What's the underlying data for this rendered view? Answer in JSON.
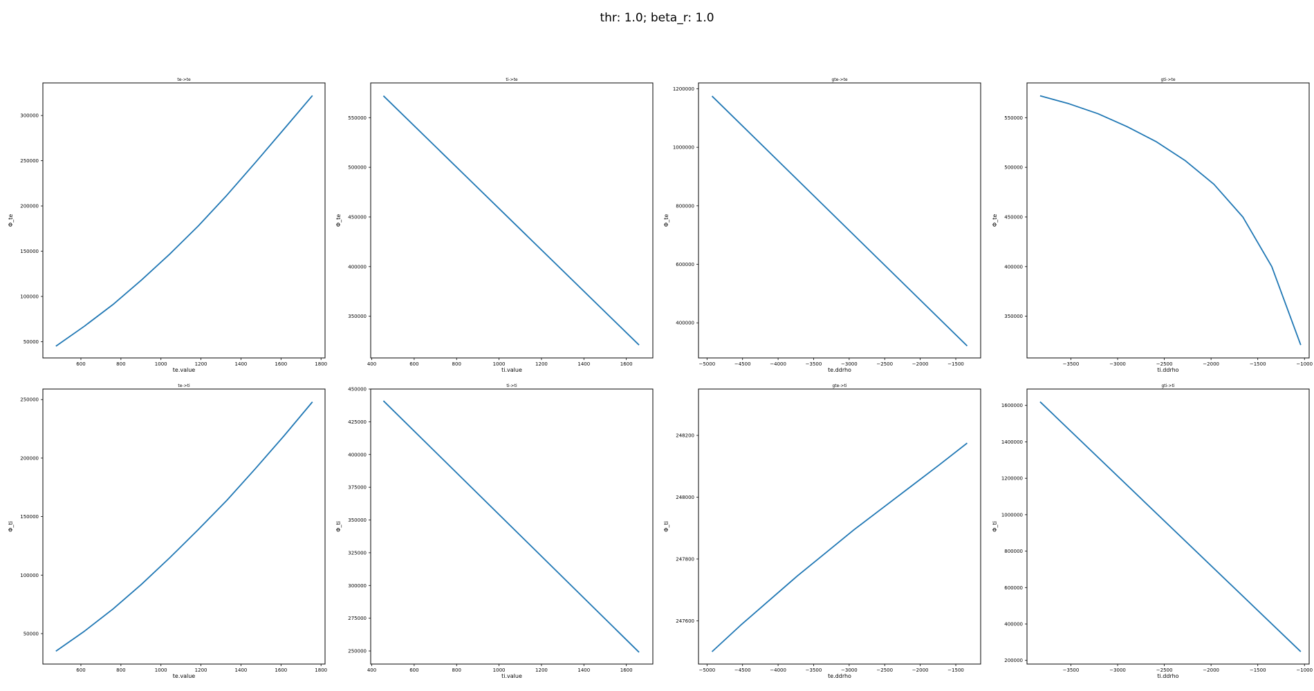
{
  "figure": {
    "suptitle": "thr: 1.0; beta_r: 1.0",
    "line_color": "#1f77b4"
  },
  "chart_data": [
    {
      "type": "line",
      "title": "te->te",
      "xlabel": "te.value",
      "ylabel": "Φ_te",
      "xlim": [
        410,
        1820
      ],
      "ylim": [
        32000,
        336000
      ],
      "xticks": [
        600,
        800,
        1000,
        1200,
        1400,
        1600,
        1800
      ],
      "yticks": [
        50000,
        100000,
        150000,
        200000,
        250000,
        300000
      ],
      "x": [
        475,
        617,
        760,
        902,
        1045,
        1187,
        1330,
        1472,
        1615,
        1757
      ],
      "y": [
        45000,
        67000,
        91000,
        118000,
        147000,
        178000,
        212000,
        248000,
        285000,
        322000
      ]
    },
    {
      "type": "line",
      "title": "ti->te",
      "xlabel": "ti.value",
      "ylabel": "Φ_te",
      "xlim": [
        395,
        1725
      ],
      "ylim": [
        308000,
        585000
      ],
      "xticks": [
        400,
        600,
        800,
        1000,
        1200,
        1400,
        1600
      ],
      "yticks": [
        350000,
        400000,
        450000,
        500000,
        550000
      ],
      "x": [
        455,
        1660
      ],
      "y": [
        572000,
        321000
      ]
    },
    {
      "type": "line",
      "title": "gte->te",
      "xlabel": "te.ddrho",
      "ylabel": "Φ_te",
      "xlim": [
        -5120,
        -1150
      ],
      "ylim": [
        280000,
        1220000
      ],
      "xticks": [
        -5000,
        -4500,
        -4000,
        -3500,
        -3000,
        -2500,
        -2000,
        -1500
      ],
      "yticks": [
        400000,
        600000,
        800000,
        1000000,
        1200000
      ],
      "x": [
        -4930,
        -1340
      ],
      "y": [
        1175000,
        321000
      ]
    },
    {
      "type": "line",
      "title": "gti->te",
      "xlabel": "ti.ddrho",
      "ylabel": "Φ_te",
      "xlim": [
        -3970,
        -950
      ],
      "ylim": [
        308000,
        585000
      ],
      "xticks": [
        -3500,
        -3000,
        -2500,
        -2000,
        -1500,
        -1000
      ],
      "yticks": [
        350000,
        400000,
        450000,
        500000,
        550000
      ],
      "x": [
        -3830,
        -3520,
        -3210,
        -2900,
        -2590,
        -2280,
        -1970,
        -1660,
        -1350,
        -1040
      ],
      "y": [
        572000,
        564000,
        554000,
        541000,
        526000,
        507000,
        483000,
        450000,
        400000,
        321000
      ]
    },
    {
      "type": "line",
      "title": "te->ti",
      "xlabel": "te.value",
      "ylabel": "Φ_ti",
      "xlim": [
        410,
        1820
      ],
      "ylim": [
        24000,
        259000
      ],
      "xticks": [
        600,
        800,
        1000,
        1200,
        1400,
        1600,
        1800
      ],
      "yticks": [
        50000,
        100000,
        150000,
        200000,
        250000
      ],
      "x": [
        475,
        617,
        760,
        902,
        1045,
        1187,
        1330,
        1472,
        1615,
        1757
      ],
      "y": [
        35000,
        52000,
        71000,
        92000,
        115000,
        139000,
        164000,
        191000,
        219000,
        248000
      ]
    },
    {
      "type": "line",
      "title": "ti->ti",
      "xlabel": "ti.value",
      "ylabel": "Φ_ti",
      "xlim": [
        395,
        1725
      ],
      "ylim": [
        240000,
        450000
      ],
      "xticks": [
        400,
        600,
        800,
        1000,
        1200,
        1400,
        1600
      ],
      "yticks": [
        250000,
        275000,
        300000,
        325000,
        350000,
        375000,
        400000,
        425000,
        450000
      ],
      "x": [
        455,
        1660
      ],
      "y": [
        441000,
        249000
      ]
    },
    {
      "type": "line",
      "title": "gte->ti",
      "xlabel": "te.ddrho",
      "ylabel": "Φ_ti",
      "xlim": [
        -5120,
        -1150
      ],
      "ylim": [
        247460,
        248350
      ],
      "xticks": [
        -5000,
        -4500,
        -4000,
        -3500,
        -3000,
        -2500,
        -2000,
        -1500
      ],
      "yticks": [
        247600,
        247800,
        248000,
        248200
      ],
      "x": [
        -4930,
        -4530,
        -4130,
        -3730,
        -3330,
        -2930,
        -2530,
        -2130,
        -1730,
        -1340
      ],
      "y": [
        247500,
        247585,
        247665,
        247745,
        247820,
        247895,
        247965,
        248035,
        248105,
        248175
      ]
    },
    {
      "type": "line",
      "title": "gti->ti",
      "xlabel": "ti.ddrho",
      "ylabel": "Φ_ti",
      "xlim": [
        -3970,
        -950
      ],
      "ylim": [
        180000,
        1690000
      ],
      "xticks": [
        -3500,
        -3000,
        -2500,
        -2000,
        -1500,
        -1000
      ],
      "yticks": [
        200000,
        400000,
        600000,
        800000,
        1000000,
        1200000,
        1400000,
        1600000
      ],
      "x": [
        -3830,
        -1040
      ],
      "y": [
        1620000,
        248000
      ]
    }
  ]
}
